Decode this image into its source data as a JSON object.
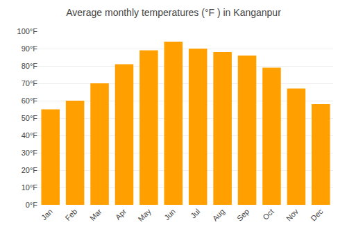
{
  "chart_data": {
    "type": "bar",
    "title": "Average monthly temperatures (°F ) in Kanganpur",
    "categories": [
      "Jan",
      "Feb",
      "Mar",
      "Apr",
      "May",
      "Jun",
      "Jul",
      "Aug",
      "Sep",
      "Oct",
      "Nov",
      "Dec"
    ],
    "values": [
      55,
      60,
      70,
      81,
      89,
      94,
      90,
      88,
      86,
      79,
      67,
      58
    ],
    "color": "#FFA000",
    "ylim": [
      0,
      100
    ],
    "yticks": [
      {
        "value": 0,
        "label": "0°F"
      },
      {
        "value": 10,
        "label": "10°F"
      },
      {
        "value": 20,
        "label": "20°F"
      },
      {
        "value": 30,
        "label": "30°F"
      },
      {
        "value": 40,
        "label": "40°F"
      },
      {
        "value": 50,
        "label": "50°F"
      },
      {
        "value": 60,
        "label": "60°F"
      },
      {
        "value": 70,
        "label": "70°F"
      },
      {
        "value": 80,
        "label": "80°F"
      },
      {
        "value": 90,
        "label": "90°F"
      },
      {
        "value": 100,
        "label": "100°F"
      }
    ],
    "grid": true
  }
}
